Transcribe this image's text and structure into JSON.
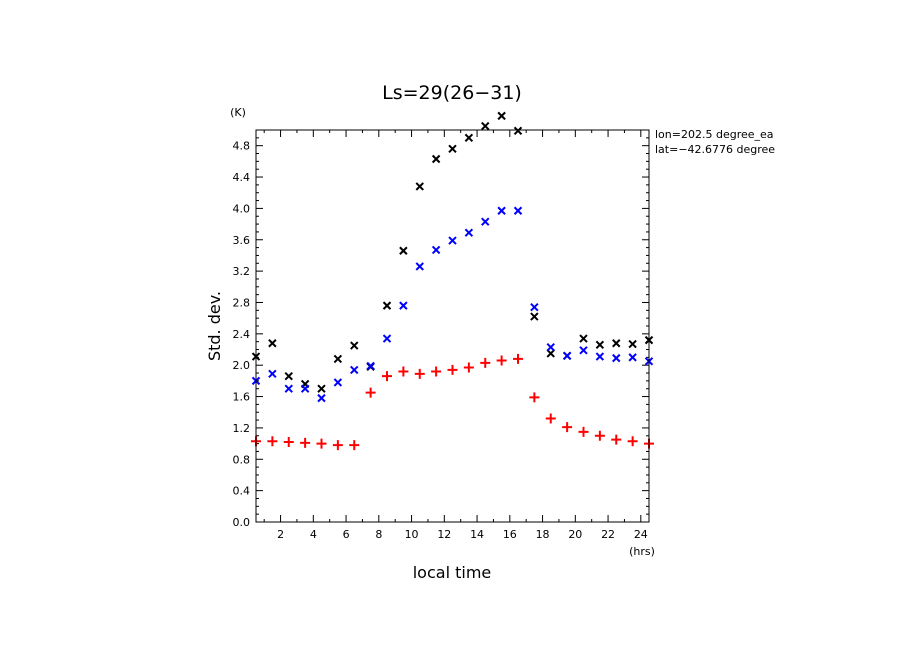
{
  "chart_data": {
    "type": "scatter",
    "title": "Ls=29(26−31)",
    "xlabel": "local time",
    "ylabel": "Std. dev.",
    "x_unit": "(hrs)",
    "y_unit": "(K)",
    "xlim": [
      0.5,
      24.5
    ],
    "ylim": [
      0.0,
      5.0
    ],
    "xticks": [
      2,
      4,
      6,
      8,
      10,
      12,
      14,
      16,
      18,
      20,
      22,
      24
    ],
    "yticks": [
      "0.0",
      "0.4",
      "0.8",
      "1.2",
      "1.6",
      "2.0",
      "2.4",
      "2.8",
      "3.2",
      "3.6",
      "4.0",
      "4.4",
      "4.8"
    ],
    "annotations": [
      "lon=202.5 degree_ea",
      "lat=−42.6776 degree"
    ],
    "series": [
      {
        "marker": "x",
        "color": "#000000",
        "x": [
          0.5,
          1.5,
          2.5,
          3.5,
          4.5,
          5.5,
          6.5,
          7.5,
          8.5,
          9.5,
          10.5,
          11.5,
          12.5,
          13.5,
          14.5,
          15.5,
          16.5,
          17.5,
          18.5,
          19.5,
          20.5,
          21.5,
          22.5,
          23.5,
          24.5
        ],
        "y": [
          2.11,
          2.28,
          1.86,
          1.76,
          1.7,
          2.08,
          2.25,
          1.98,
          2.76,
          3.46,
          4.28,
          4.63,
          4.76,
          4.9,
          5.05,
          5.18,
          4.99,
          2.62,
          2.15,
          2.12,
          2.34,
          2.26,
          2.28,
          2.27,
          2.32
        ]
      },
      {
        "marker": "x",
        "color": "#0000ff",
        "x": [
          0.5,
          1.5,
          2.5,
          3.5,
          4.5,
          5.5,
          6.5,
          7.5,
          8.5,
          9.5,
          10.5,
          11.5,
          12.5,
          13.5,
          14.5,
          15.5,
          16.5,
          17.5,
          18.5,
          19.5,
          20.5,
          21.5,
          22.5,
          23.5,
          24.5
        ],
        "y": [
          1.8,
          1.89,
          1.7,
          1.7,
          1.58,
          1.78,
          1.94,
          1.99,
          2.34,
          2.76,
          3.26,
          3.47,
          3.59,
          3.69,
          3.83,
          3.97,
          3.97,
          2.74,
          2.23,
          2.12,
          2.19,
          2.11,
          2.09,
          2.1,
          2.05
        ]
      },
      {
        "marker": "+",
        "color": "#ff0000",
        "x": [
          0.5,
          1.5,
          2.5,
          3.5,
          4.5,
          5.5,
          6.5,
          7.5,
          8.5,
          9.5,
          10.5,
          11.5,
          12.5,
          13.5,
          14.5,
          15.5,
          16.5,
          17.5,
          18.5,
          19.5,
          20.5,
          21.5,
          22.5,
          23.5,
          24.5
        ],
        "y": [
          1.03,
          1.03,
          1.02,
          1.01,
          1.0,
          0.98,
          0.98,
          1.65,
          1.86,
          1.92,
          1.89,
          1.92,
          1.94,
          1.97,
          2.03,
          2.06,
          2.08,
          1.59,
          1.32,
          1.21,
          1.15,
          1.1,
          1.05,
          1.03,
          1.0
        ]
      }
    ]
  }
}
